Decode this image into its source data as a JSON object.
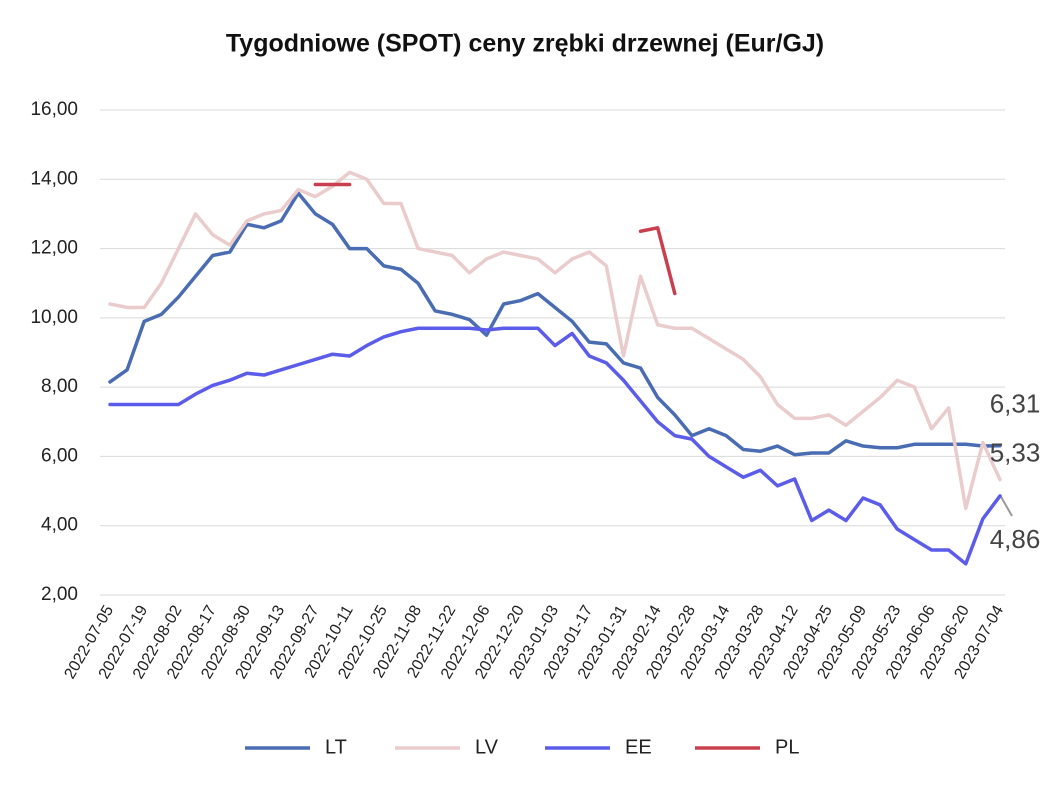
{
  "chart_data": {
    "type": "line",
    "title": "Tygodniowe (SPOT) ceny zrębki drzewnej (Eur/GJ)",
    "categories": [
      "2022-07-05",
      null,
      "2022-07-19",
      null,
      "2022-08-02",
      null,
      "2022-08-17",
      null,
      "2022-08-30",
      null,
      "2022-09-13",
      null,
      "2022-09-27",
      null,
      "2022-10-11",
      null,
      "2022-10-25",
      null,
      "2022-11-08",
      null,
      "2022-11-22",
      null,
      "2022-12-06",
      null,
      "2022-12-20",
      null,
      "2023-01-03",
      null,
      "2023-01-17",
      null,
      "2023-01-31",
      null,
      "2023-02-14",
      null,
      "2023-02-28",
      null,
      "2023-03-14",
      null,
      "2023-03-28",
      null,
      "2023-04-12",
      null,
      "2023-04-25",
      null,
      "2023-05-09",
      null,
      "2023-05-23",
      null,
      "2023-06-06",
      null,
      "2023-06-20",
      null,
      "2023-07-04"
    ],
    "ylim": [
      2,
      16
    ],
    "yticks": [
      {
        "value": 2,
        "label": "2,00"
      },
      {
        "value": 4,
        "label": "4,00"
      },
      {
        "value": 6,
        "label": "6,00"
      },
      {
        "value": 8,
        "label": "8,00"
      },
      {
        "value": 10,
        "label": "10,00"
      },
      {
        "value": 12,
        "label": "12,00"
      },
      {
        "value": 14,
        "label": "14,00"
      },
      {
        "value": 16,
        "label": "16,00"
      }
    ],
    "grid": true,
    "legend": "bottom",
    "series": [
      {
        "name": "LT",
        "color": "#4a6cb3",
        "values": [
          8.15,
          8.5,
          9.9,
          10.1,
          10.6,
          11.2,
          11.8,
          11.9,
          12.7,
          12.6,
          12.8,
          13.6,
          13.0,
          12.7,
          12.0,
          12.0,
          11.5,
          11.4,
          11.0,
          10.2,
          10.1,
          9.95,
          9.5,
          10.4,
          10.5,
          10.7,
          10.3,
          9.9,
          9.3,
          9.25,
          8.7,
          8.55,
          7.7,
          7.2,
          6.6,
          6.8,
          6.6,
          6.2,
          6.15,
          6.3,
          6.05,
          6.1,
          6.1,
          6.45,
          6.3,
          6.25,
          6.25,
          6.35,
          6.35,
          6.35,
          6.35,
          6.3,
          6.31
        ],
        "value_labels": [
          null,
          null,
          null,
          null,
          null,
          null,
          null,
          null,
          null,
          null,
          null,
          null,
          null,
          null,
          null,
          null,
          null,
          null,
          null,
          null,
          null,
          null,
          null,
          null,
          null,
          null,
          null,
          null,
          null,
          null,
          null,
          null,
          null,
          null,
          null,
          null,
          null,
          null,
          null,
          null,
          null,
          null,
          null,
          null,
          null,
          null,
          null,
          null,
          null,
          null,
          null,
          null,
          "6,31"
        ]
      },
      {
        "name": "LV",
        "color": "#e9cccb",
        "values": [
          10.4,
          10.3,
          10.3,
          11.0,
          12.0,
          13.0,
          12.4,
          12.1,
          12.8,
          13.0,
          13.1,
          13.7,
          13.5,
          13.8,
          14.2,
          14.0,
          13.3,
          13.3,
          12.0,
          11.9,
          11.8,
          11.3,
          11.7,
          11.9,
          11.8,
          11.7,
          11.3,
          11.7,
          11.9,
          11.5,
          8.9,
          11.2,
          9.8,
          9.7,
          9.7,
          9.4,
          9.1,
          8.8,
          8.3,
          7.5,
          7.1,
          7.1,
          7.2,
          6.9,
          7.3,
          7.7,
          8.2,
          8.0,
          6.8,
          7.4,
          4.5,
          6.4,
          5.33
        ],
        "value_labels": [
          null,
          null,
          null,
          null,
          null,
          null,
          null,
          null,
          null,
          null,
          null,
          null,
          null,
          null,
          null,
          null,
          null,
          null,
          null,
          null,
          null,
          null,
          null,
          null,
          null,
          null,
          null,
          null,
          null,
          null,
          null,
          null,
          null,
          null,
          null,
          null,
          null,
          null,
          null,
          null,
          null,
          null,
          null,
          null,
          null,
          null,
          null,
          null,
          null,
          null,
          null,
          null,
          "5,33"
        ]
      },
      {
        "name": "EE",
        "color": "#5b5cea",
        "values": [
          7.5,
          7.5,
          7.5,
          7.5,
          7.5,
          7.8,
          8.05,
          8.2,
          8.4,
          8.35,
          8.5,
          8.65,
          8.8,
          8.95,
          8.9,
          9.2,
          9.45,
          9.6,
          9.7,
          9.7,
          9.7,
          9.7,
          9.65,
          9.7,
          9.7,
          9.7,
          9.2,
          9.55,
          8.9,
          8.7,
          8.2,
          7.6,
          7.0,
          6.6,
          6.5,
          6.0,
          5.7,
          5.4,
          5.6,
          5.15,
          5.35,
          4.15,
          4.45,
          4.15,
          4.8,
          4.6,
          3.9,
          3.6,
          3.3,
          3.3,
          2.9,
          4.2,
          4.86
        ],
        "value_labels": [
          null,
          null,
          null,
          null,
          null,
          null,
          null,
          null,
          null,
          null,
          null,
          null,
          null,
          null,
          null,
          null,
          null,
          null,
          null,
          null,
          null,
          null,
          null,
          null,
          null,
          null,
          null,
          null,
          null,
          null,
          null,
          null,
          null,
          null,
          null,
          null,
          null,
          null,
          null,
          null,
          null,
          null,
          null,
          null,
          null,
          null,
          null,
          null,
          null,
          null,
          null,
          null,
          "4,86"
        ]
      },
      {
        "name": "PL",
        "color": "#c8404f",
        "values": [
          null,
          null,
          null,
          null,
          null,
          null,
          null,
          null,
          null,
          null,
          null,
          null,
          13.85,
          13.85,
          13.85,
          null,
          null,
          null,
          null,
          null,
          null,
          null,
          null,
          null,
          null,
          null,
          null,
          null,
          null,
          null,
          null,
          12.5,
          12.6,
          10.7,
          null,
          null,
          null,
          null,
          null,
          null,
          null,
          null,
          null,
          null,
          null,
          null,
          null,
          null,
          null,
          null,
          null,
          null,
          null
        ]
      }
    ]
  }
}
